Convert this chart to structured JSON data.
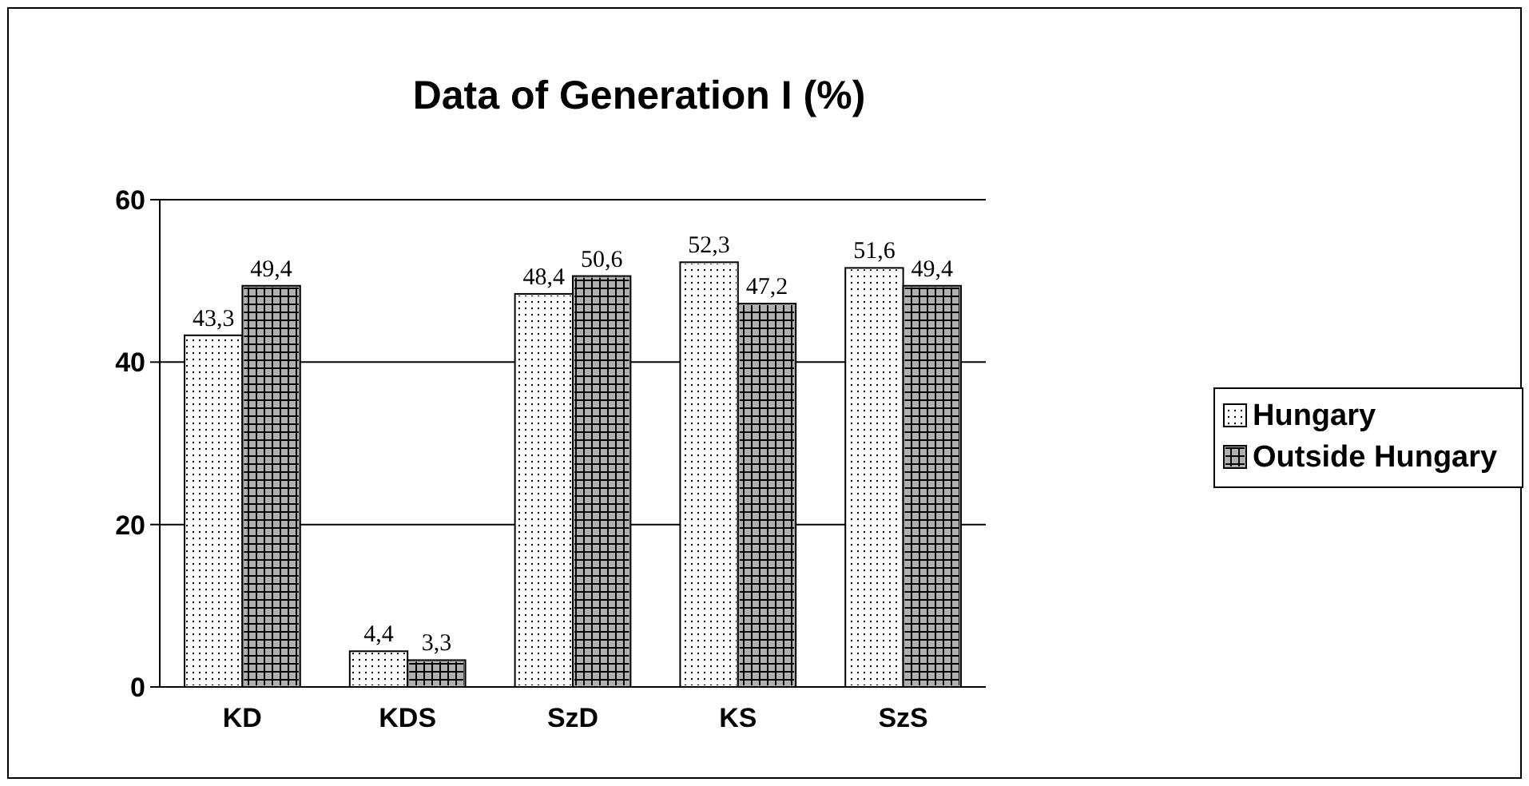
{
  "chart_data": {
    "type": "bar",
    "title": "Data of Generation I (%)",
    "categories": [
      "KD",
      "KDS",
      "SzD",
      "KS",
      "SzS"
    ],
    "series": [
      {
        "name": "Hungary",
        "color": "#ffffff",
        "values": [
          43.3,
          4.4,
          48.4,
          52.3,
          51.6
        ],
        "value_labels": [
          "43,3",
          "4,4",
          "48,4",
          "52,3",
          "51,6"
        ]
      },
      {
        "name": "Outside Hungary",
        "color": "#b0b0b0",
        "values": [
          49.4,
          3.3,
          50.6,
          47.2,
          49.4
        ],
        "value_labels": [
          "49,4",
          "3,3",
          "50,6",
          "47,2",
          "49,4"
        ]
      }
    ],
    "ylim": [
      0,
      60
    ],
    "yticks": [
      0,
      20,
      40,
      60
    ],
    "grid": "y",
    "legend": "right"
  }
}
